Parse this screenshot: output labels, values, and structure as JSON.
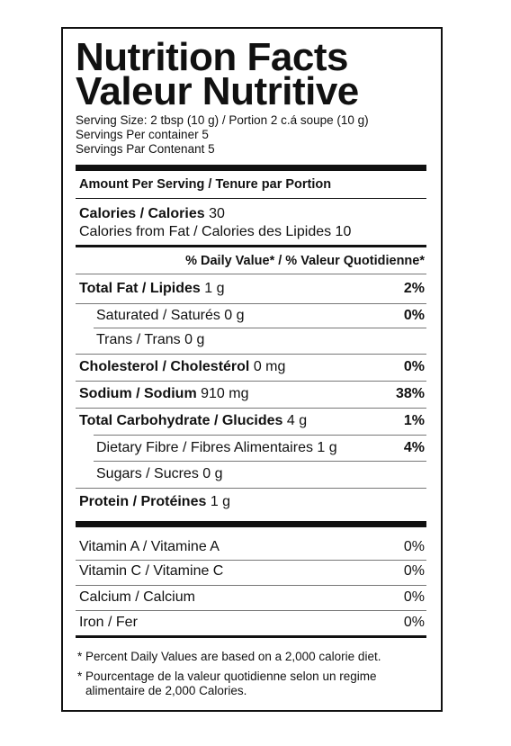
{
  "header": {
    "title": "Nutrition Facts",
    "subtitle": "Valeur Nutritive",
    "serving_size": "Serving Size: 2 tbsp (10 g) / Portion 2 c.á soupe (10 g)",
    "servings_per_container": "Servings Per container 5",
    "servings_par_contenant": "Servings Par Contenant 5"
  },
  "amount_header": "Amount Per Serving / Tenure par Portion",
  "calories": {
    "label": "Calories / Calories",
    "amount": "30"
  },
  "calories_from_fat": "Calories from Fat / Calories des Lipides 10",
  "dv_header": "% Daily Value* / % Valeur Quotidienne*",
  "nutrients": [
    {
      "label": "Total Fat / Lipides",
      "amount": "1 g",
      "dv": "2%"
    },
    {
      "label": "Saturated / Saturés 0 g",
      "dv": "0%"
    },
    {
      "label": "Trans / Trans 0 g"
    },
    {
      "label": "Cholesterol / Cholestérol",
      "amount": "0 mg",
      "dv": "0%"
    },
    {
      "label": "Sodium / Sodium",
      "amount": "910 mg",
      "dv": "38%"
    },
    {
      "label": "Total Carbohydrate / Glucides",
      "amount": "4 g",
      "dv": "1%"
    },
    {
      "label": "Dietary Fibre / Fibres Alimentaires 1 g",
      "dv": "4%"
    },
    {
      "label": "Sugars / Sucres 0 g"
    },
    {
      "label": "Protein / Protéines",
      "amount": "1 g"
    }
  ],
  "vitamins": [
    {
      "label": "Vitamin A / Vitamine A",
      "dv": "0%"
    },
    {
      "label": "Vitamin C / Vitamine C",
      "dv": "0%"
    },
    {
      "label": "Calcium / Calcium",
      "dv": "0%"
    },
    {
      "label": "Iron / Fer",
      "dv": "0%"
    }
  ],
  "footnotes": [
    "Percent Daily Values are based on a 2,000 calorie diet.",
    "Pourcentage de la valeur quotidienne selon un regime alimentaire de 2,000 Calories."
  ]
}
